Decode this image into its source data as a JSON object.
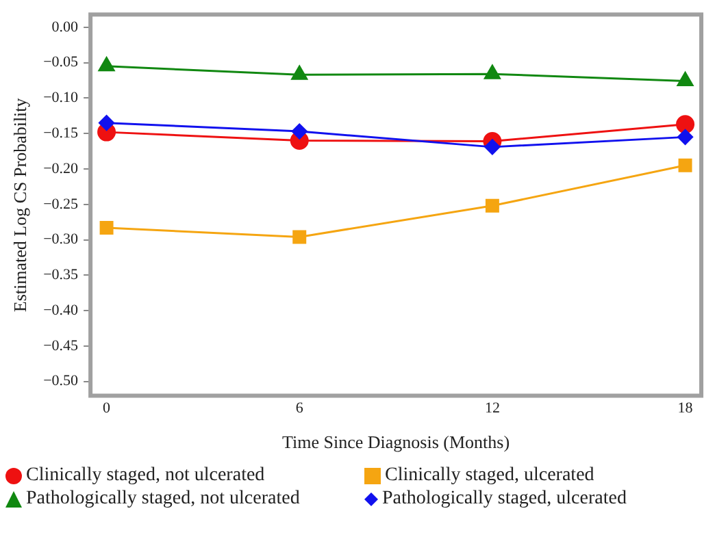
{
  "chart_data": {
    "type": "line",
    "xlabel": "Time Since Diagnosis (Months)",
    "ylabel": "Estimated Log CS Probability",
    "x": [
      0,
      6,
      12,
      18
    ],
    "xlim": [
      -0.5,
      18.5
    ],
    "xticks": [
      0,
      6,
      12,
      18
    ],
    "ylim": [
      -0.52,
      0.018
    ],
    "yticks": [
      {
        "value": 0,
        "label": "0.00"
      },
      {
        "value": -0.05,
        "label": "−0.05"
      },
      {
        "value": -0.1,
        "label": "−0.10"
      },
      {
        "value": -0.15,
        "label": "−0.15"
      },
      {
        "value": -0.2,
        "label": "−0.20"
      },
      {
        "value": -0.25,
        "label": "−0.25"
      },
      {
        "value": -0.3,
        "label": "−0.30"
      },
      {
        "value": -0.35,
        "label": "−0.35"
      },
      {
        "value": -0.4,
        "label": "−0.40"
      },
      {
        "value": -0.45,
        "label": "−0.45"
      },
      {
        "value": -0.5,
        "label": "−0.50"
      }
    ],
    "grid": false,
    "legend": "bottom",
    "line_style": "solid",
    "series": [
      {
        "name": "Clinically staged, not ulcerated",
        "color": "#ee1111",
        "marker": "circle",
        "values": [
          -0.148,
          -0.16,
          -0.161,
          -0.137
        ]
      },
      {
        "name": "Clinically staged, ulcerated",
        "color": "#f5a511",
        "marker": "square",
        "values": [
          -0.283,
          -0.296,
          -0.252,
          -0.195
        ]
      },
      {
        "name": "Pathologically staged, not ulcerated",
        "color": "#118811",
        "marker": "triangle",
        "values": [
          -0.055,
          -0.067,
          -0.066,
          -0.076
        ]
      },
      {
        "name": "Pathologically staged, ulcerated",
        "color": "#1111ee",
        "marker": "diamond",
        "values": [
          -0.135,
          -0.147,
          -0.169,
          -0.155
        ]
      }
    ]
  }
}
